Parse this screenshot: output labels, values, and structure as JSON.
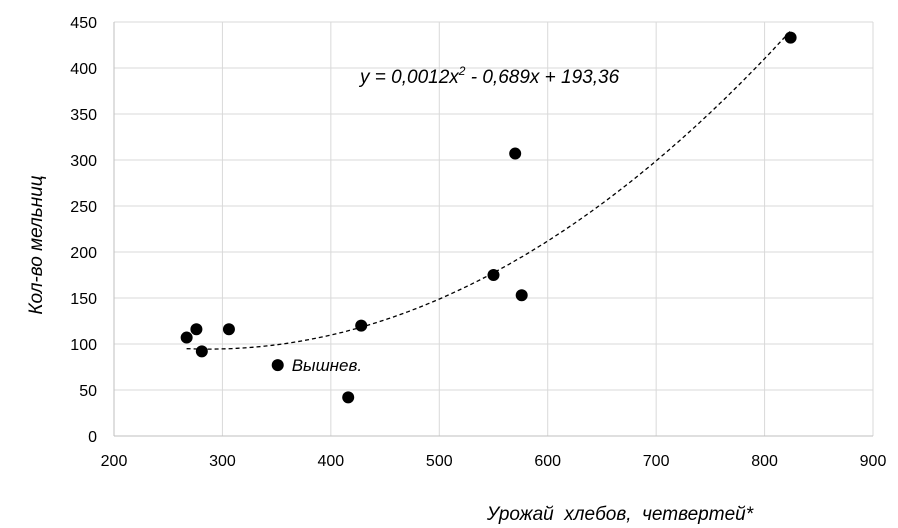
{
  "chart_data": {
    "type": "scatter",
    "title": "",
    "xlabel": "Урожай  хлебов,  четвертей*",
    "ylabel": "Кол-во мельниц",
    "xlim": [
      200,
      900
    ],
    "ylim": [
      0,
      450
    ],
    "x_ticks": [
      "200",
      "300",
      "400",
      "500",
      "600",
      "700",
      "800",
      "900"
    ],
    "y_ticks": [
      "0",
      "50",
      "100",
      "150",
      "200",
      "250",
      "300",
      "350",
      "400",
      "450"
    ],
    "grid": "vertical and horizontal",
    "points": [
      {
        "x": 267,
        "y": 107
      },
      {
        "x": 276,
        "y": 116
      },
      {
        "x": 281,
        "y": 92
      },
      {
        "x": 306,
        "y": 116
      },
      {
        "x": 351,
        "y": 77,
        "label": "Вышнев."
      },
      {
        "x": 416,
        "y": 42
      },
      {
        "x": 428,
        "y": 120
      },
      {
        "x": 550,
        "y": 175
      },
      {
        "x": 570,
        "y": 307
      },
      {
        "x": 576,
        "y": 153
      },
      {
        "x": 824,
        "y": 433
      }
    ],
    "trendline": {
      "type": "polynomial",
      "style": "dashed",
      "coefficients": [
        0.0012,
        -0.689,
        193.36
      ],
      "x_range": [
        267,
        824
      ],
      "equation": {
        "prefix": "y = 0,0012x",
        "exponent": "2",
        "suffix": "  - 0,689x + 193,36"
      }
    }
  }
}
